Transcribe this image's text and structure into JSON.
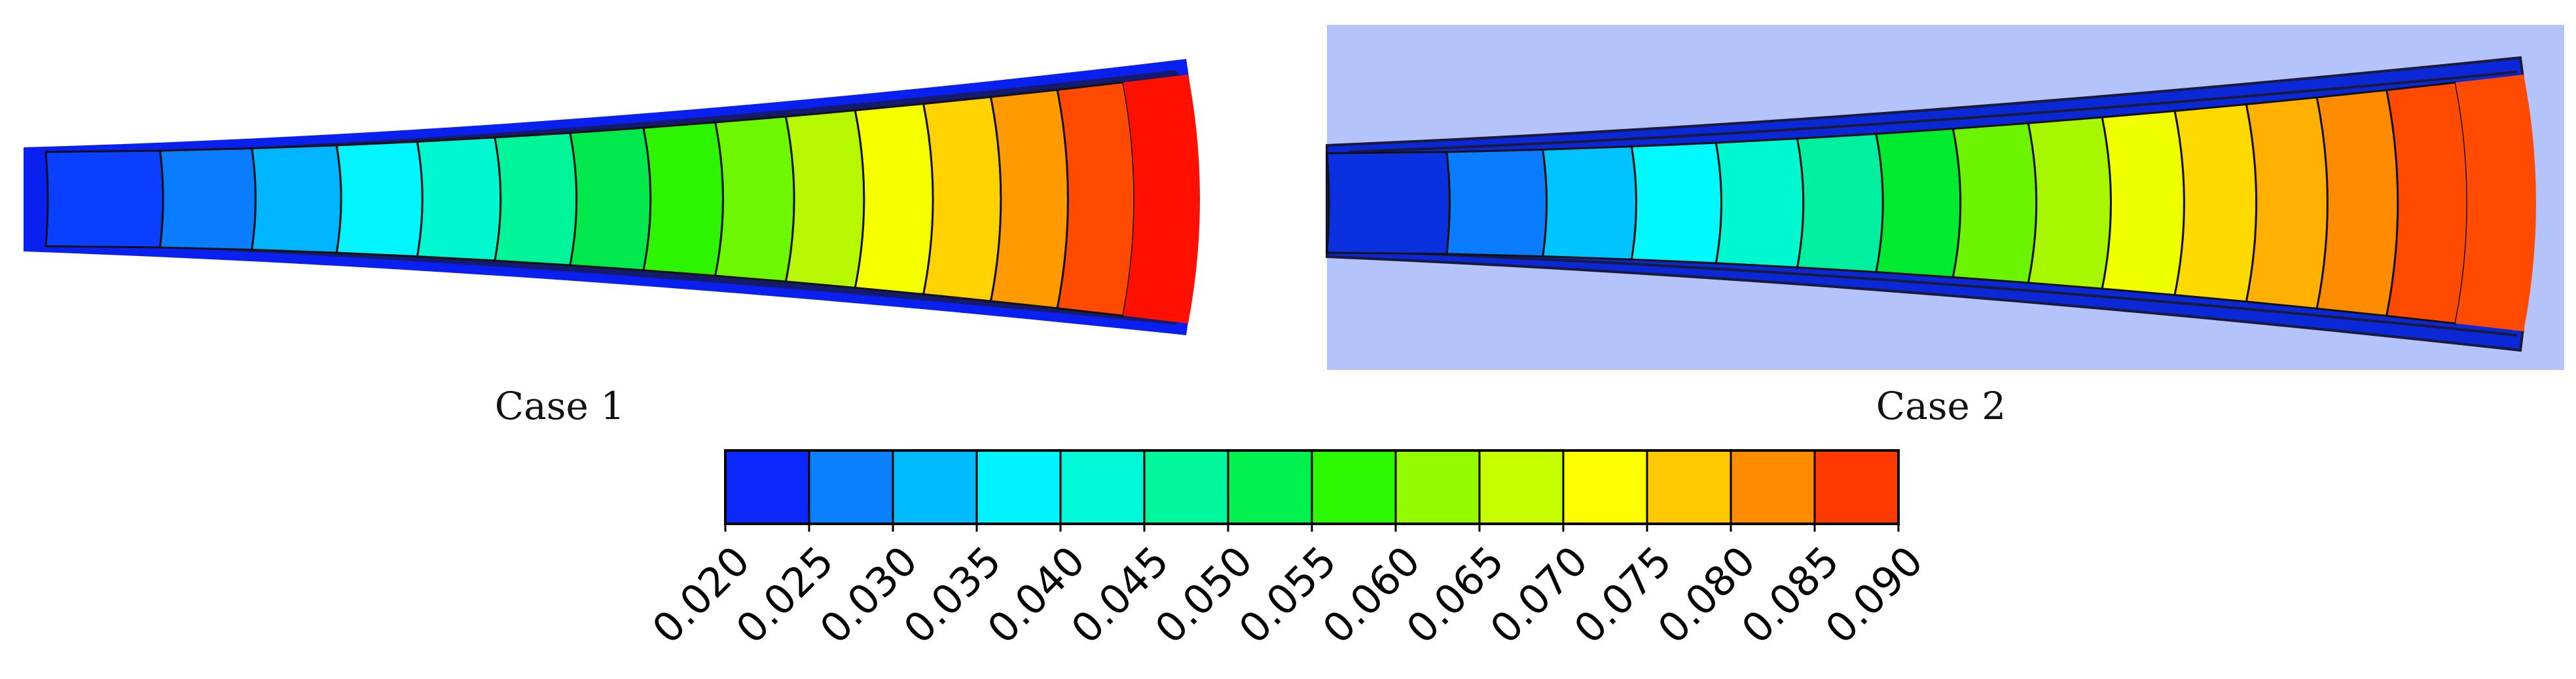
{
  "panels": [
    {
      "label": "Case 1",
      "background": "#ffffff",
      "outline_color": "#0a20f0"
    },
    {
      "label": "Case 2",
      "background": "#b4c4fa",
      "outline_color": "#0a28d8"
    }
  ],
  "colorbar": {
    "colors": [
      "#0a28ff",
      "#0a80ff",
      "#00bcff",
      "#00f4ff",
      "#00f8d8",
      "#00f79b",
      "#00f04e",
      "#2cf800",
      "#94fa00",
      "#c7ff00",
      "#fdff00",
      "#ffc800",
      "#ff8c00",
      "#ff3a00"
    ],
    "tick_labels": [
      "0.020",
      "0.025",
      "0.030",
      "0.035",
      "0.040",
      "0.045",
      "0.050",
      "0.055",
      "0.060",
      "0.065",
      "0.070",
      "0.075",
      "0.080",
      "0.085",
      "0.090"
    ]
  },
  "case1_palette": [
    "#0a3fff",
    "#0a7cff",
    "#00b5ff",
    "#00f5ff",
    "#00f7cf",
    "#00f59a",
    "#00e84c",
    "#2df400",
    "#6df700",
    "#b7f800",
    "#f6ff00",
    "#ffd200",
    "#ff9a00",
    "#ff4a00",
    "#ff1000"
  ],
  "case2_palette": [
    "#0a30e0",
    "#0a7cff",
    "#00c4ff",
    "#00f8ff",
    "#00f8d0",
    "#00f0a0",
    "#00ea30",
    "#6bf300",
    "#a6f700",
    "#f0ff00",
    "#ffda00",
    "#ffb000",
    "#ff8c00",
    "#ff4a00",
    "#ff4a00"
  ]
}
